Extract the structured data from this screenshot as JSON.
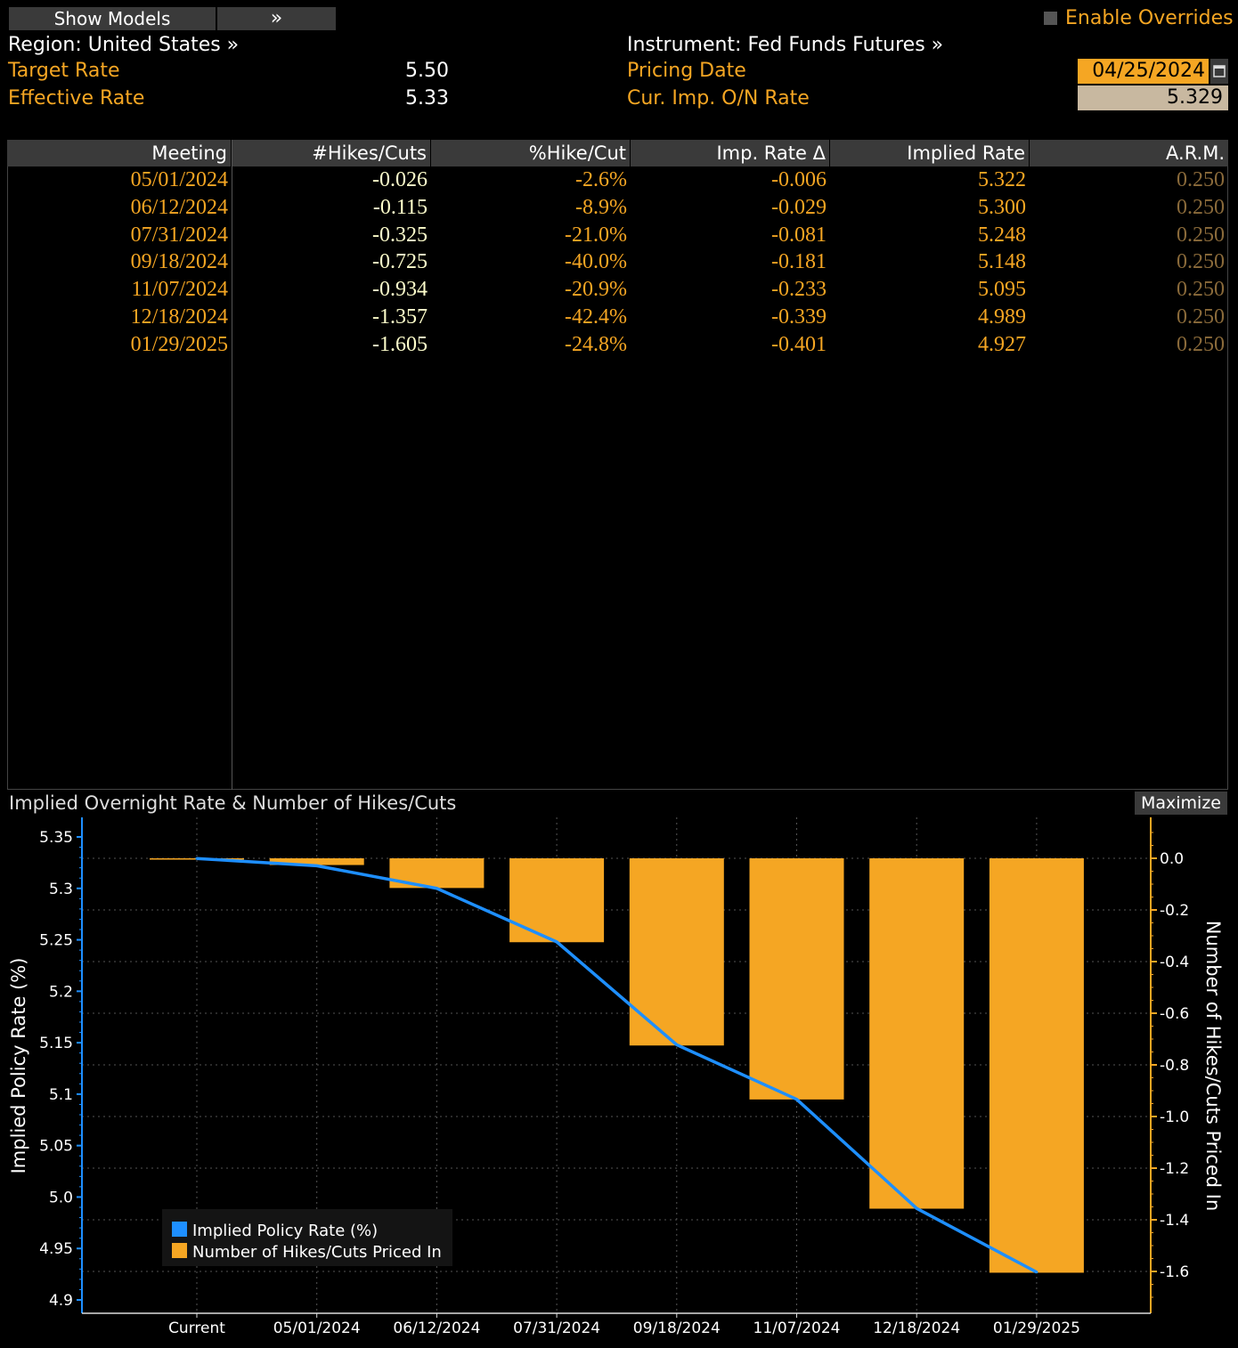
{
  "toolbar": {
    "show_models": "Show Models",
    "expand_glyph": "»",
    "enable_overrides": "Enable Overrides"
  },
  "header": {
    "region": "Region: United States »",
    "instrument": "Instrument: Fed Funds Futures »",
    "target_rate_label": "Target Rate",
    "target_rate_value": "5.50",
    "effective_rate_label": "Effective Rate",
    "effective_rate_value": "5.33",
    "pricing_date_label": "Pricing Date",
    "pricing_date_value": "04/25/2024",
    "cur_imp_label": "Cur. Imp. O/N Rate",
    "cur_imp_value": "5.329"
  },
  "table": {
    "columns": [
      "Meeting",
      "#Hikes/Cuts",
      "%Hike/Cut",
      "Imp. Rate Δ",
      "Implied Rate",
      "A.R.M."
    ],
    "rows": [
      [
        "05/01/2024",
        "-0.026",
        "-2.6%",
        "-0.006",
        "5.322",
        "0.250"
      ],
      [
        "06/12/2024",
        "-0.115",
        "-8.9%",
        "-0.029",
        "5.300",
        "0.250"
      ],
      [
        "07/31/2024",
        "-0.325",
        "-21.0%",
        "-0.081",
        "5.248",
        "0.250"
      ],
      [
        "09/18/2024",
        "-0.725",
        "-40.0%",
        "-0.181",
        "5.148",
        "0.250"
      ],
      [
        "11/07/2024",
        "-0.934",
        "-20.9%",
        "-0.233",
        "5.095",
        "0.250"
      ],
      [
        "12/18/2024",
        "-1.357",
        "-42.4%",
        "-0.339",
        "4.989",
        "0.250"
      ],
      [
        "01/29/2025",
        "-1.605",
        "-24.8%",
        "-0.401",
        "4.927",
        "0.250"
      ]
    ]
  },
  "chart_panel": {
    "title": "Implied Overnight Rate & Number of Hikes/Cuts",
    "maximize": "Maximize"
  },
  "colors": {
    "orange": "#f5a623",
    "blue": "#1e8fff",
    "header_gray": "#3a3a3a"
  },
  "chart_data": {
    "type": "bar",
    "categories": [
      "Current",
      "05/01/2024",
      "06/12/2024",
      "07/31/2024",
      "09/18/2024",
      "11/07/2024",
      "12/18/2024",
      "01/29/2025"
    ],
    "series": [
      {
        "name": "Implied Policy Rate (%)",
        "type": "line",
        "axis": "left",
        "values": [
          5.329,
          5.322,
          5.3,
          5.248,
          5.148,
          5.095,
          4.989,
          4.927
        ]
      },
      {
        "name": "Number of Hikes/Cuts Priced In",
        "type": "bar",
        "axis": "right",
        "values": [
          0,
          -0.026,
          -0.115,
          -0.325,
          -0.725,
          -0.934,
          -1.357,
          -1.605
        ]
      }
    ],
    "ylabel": "Implied Policy Rate (%)",
    "y2label": "Number of Hikes/Cuts Priced In",
    "ylim": [
      4.9,
      5.35
    ],
    "y2lim": [
      -1.6,
      0.0
    ],
    "yticks": [
      "5.35",
      "5.3",
      "5.25",
      "5.2",
      "5.15",
      "5.1",
      "5.05",
      "5.0",
      "4.95",
      "4.9"
    ],
    "y2ticks": [
      "0.0",
      "-0.2",
      "-0.4",
      "-0.6",
      "-0.8",
      "-1.0",
      "-1.2",
      "-1.4",
      "-1.6"
    ],
    "legend_position": "bottom-left",
    "grid": true
  }
}
